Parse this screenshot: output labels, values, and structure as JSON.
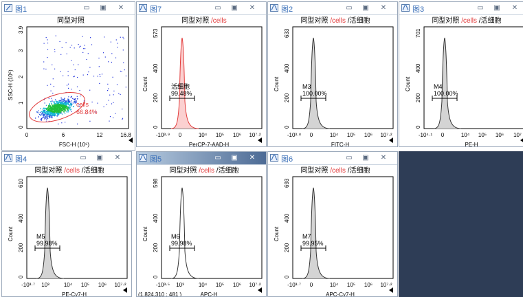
{
  "windows": {
    "w1": {
      "title": "图1",
      "plot_title": "同型对照",
      "ylabel": "SSC-H  (10⁶)",
      "xlabel": "FSC-H  (10⁶)",
      "yticks": [
        "0",
        "1",
        "2",
        "3",
        "3.9"
      ],
      "xticks": [
        "0",
        "6",
        "12",
        "16.8"
      ],
      "gate_name": "cells",
      "gate_pct": "66.84%"
    },
    "w7": {
      "title": "图7",
      "plot_title_black": "同型对照",
      "plot_title_red": " /cells",
      "plot_title_rest": "",
      "ylabel": "Count",
      "yticks": [
        "0",
        "200",
        "400",
        "573"
      ],
      "xticks": [
        "-10³·⁹",
        "0",
        "10⁴",
        "10⁵",
        "10⁶",
        "10⁷·²"
      ],
      "xlabel": "PerCP-7-AAD-H",
      "gate_name": "活细胞",
      "gate_pct": "99.48%"
    },
    "w2": {
      "title": "图2",
      "plot_title_black": "同型对照",
      "plot_title_red": " /cells",
      "plot_title_rest": " /活细胞",
      "ylabel": "Count",
      "yticks": [
        "0",
        "200",
        "400",
        "633"
      ],
      "xticks": [
        "-10³·⁸",
        "0",
        "10⁴",
        "10⁵",
        "10⁶",
        "10⁷·²"
      ],
      "xlabel": "FITC-H",
      "gate_name": "M3",
      "gate_pct": "100.00%"
    },
    "w3": {
      "title": "图3",
      "plot_title_black": "同型对照",
      "plot_title_red": " /cells",
      "plot_title_rest": " /活细胞",
      "ylabel": "Count",
      "yticks": [
        "0",
        "200",
        "400",
        "701"
      ],
      "xticks": [
        "-10⁴·¹",
        "0",
        "10⁴",
        "10⁵",
        "10⁶",
        "10⁷"
      ],
      "xlabel": "PE-H",
      "gate_name": "M4",
      "gate_pct": "100.00%"
    },
    "w4": {
      "title": "图4",
      "plot_title_black": "同型对照",
      "plot_title_red": " /cells",
      "plot_title_rest": " /活细胞",
      "ylabel": "Count",
      "yticks": [
        "0",
        "200",
        "400",
        "610"
      ],
      "xticks": [
        "-10³·⁷",
        "10³",
        "10⁴",
        "10⁵",
        "10⁶",
        "10⁷·²"
      ],
      "xlabel": "PE-Cy7-H",
      "gate_name": "M5",
      "gate_pct": "99.98%"
    },
    "w5": {
      "title": "图5",
      "plot_title_black": "同型对照",
      "plot_title_red": " /cells",
      "plot_title_rest": " /活细胞",
      "ylabel": "Count",
      "yticks": [
        "0",
        "200",
        "400",
        "598"
      ],
      "xticks": [
        "-10³·⁵",
        "10³",
        "10⁴",
        "10⁵",
        "10⁶",
        "10⁷·²"
      ],
      "xlabel": "APC-H",
      "gate_name": "M6",
      "gate_pct": "99.98%",
      "coord": "(1,824,310 : 481 )"
    },
    "w6": {
      "title": "图6",
      "plot_title_black": "同型对照",
      "plot_title_red": " /cells",
      "plot_title_rest": " /活细胞",
      "ylabel": "Count",
      "yticks": [
        "0",
        "200",
        "400",
        "693"
      ],
      "xticks": [
        "-10³·⁷",
        "0",
        "10⁴",
        "10⁵",
        "10⁶",
        "10⁷·²"
      ],
      "xlabel": "APC-Cy7-H",
      "gate_name": "M7",
      "gate_pct": "99.95%"
    }
  },
  "colors": {
    "accent_red": "#e23b3b",
    "title_blue": "#3a6fb8",
    "axis": "#000000",
    "workspace": "#2e3d56"
  },
  "icons": {
    "minimize": "minimize-icon",
    "maximize": "maximize-icon",
    "close": "close-icon",
    "expand": "triangle-left-icon"
  }
}
